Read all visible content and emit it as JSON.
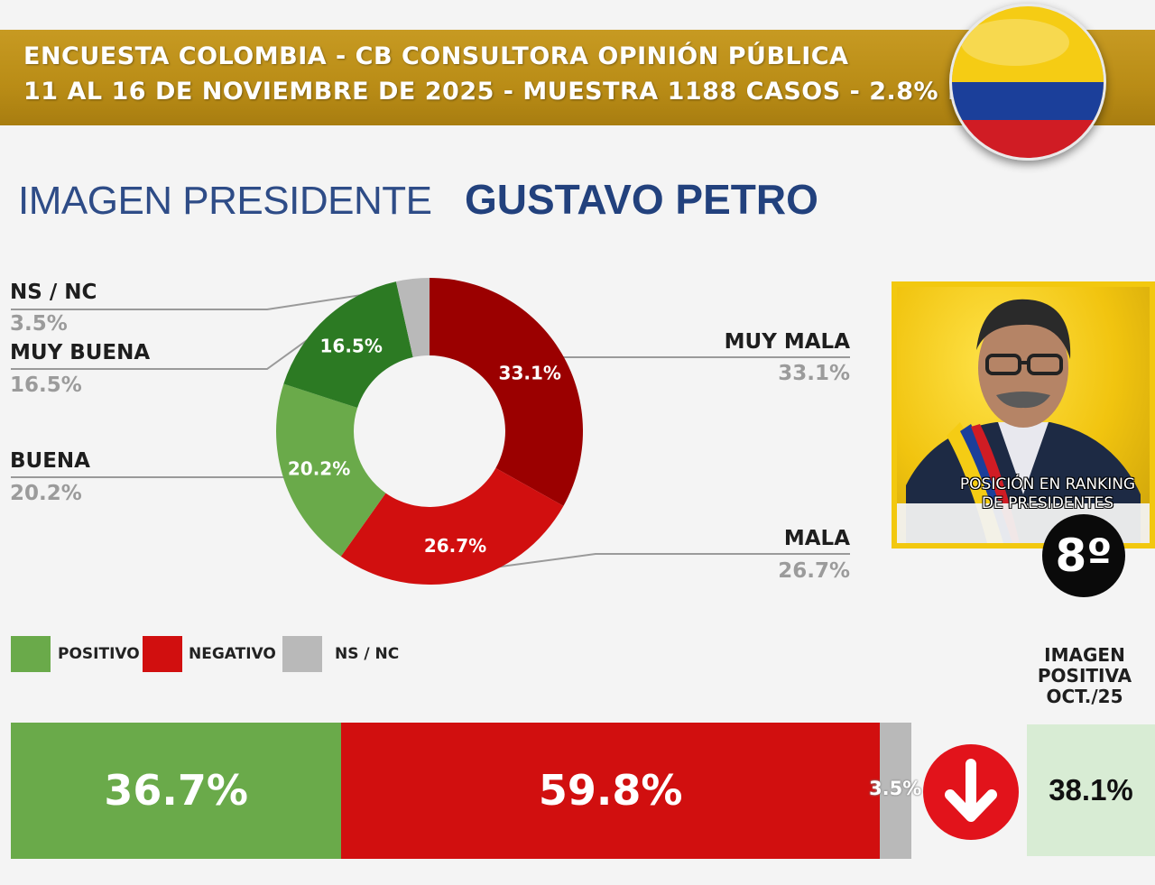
{
  "header": {
    "line1": "ENCUESTA COLOMBIA - CB CONSULTORA OPINIÓN PÚBLICA",
    "line2": "11 AL 16 DE NOVIEMBRE DE 2025 - MUESTRA 1188 CASOS - 2.8% M.E."
  },
  "title": {
    "prefix": "IMAGEN PRESIDENTE",
    "name": "GUSTAVO PETRO"
  },
  "labels": {
    "nsnc": {
      "name": "NS / NC",
      "value": "3.5%"
    },
    "muy_buena": {
      "name": "MUY BUENA",
      "value": "16.5%"
    },
    "buena": {
      "name": "BUENA",
      "value": "20.2%"
    },
    "muy_mala": {
      "name": "MUY MALA",
      "value": "33.1%"
    },
    "mala": {
      "name": "MALA",
      "value": "26.7%"
    }
  },
  "chart_data": {
    "type": "pie",
    "variant": "donut",
    "title": "IMAGEN PRESIDENTE GUSTAVO PETRO",
    "slices": [
      {
        "name": "MUY MALA",
        "value": 33.1,
        "label": "33.1%",
        "color": "#9b0000"
      },
      {
        "name": "MALA",
        "value": 26.7,
        "label": "26.7%",
        "color": "#d10f0f"
      },
      {
        "name": "BUENA",
        "value": 20.2,
        "label": "20.2%",
        "color": "#6aaa4a"
      },
      {
        "name": "MUY BUENA",
        "value": 16.5,
        "label": "16.5%",
        "color": "#2c7a23"
      },
      {
        "name": "NS / NC",
        "value": 3.5,
        "label": "",
        "color": "#b9b9b9"
      }
    ],
    "stacked_bar": {
      "segments": [
        {
          "name": "POSITIVO",
          "value": 36.7,
          "label": "36.7%",
          "color": "#6aaa4a"
        },
        {
          "name": "NEGATIVO",
          "value": 59.8,
          "label": "59.8%",
          "color": "#d10f0f"
        },
        {
          "name": "NS / NC",
          "value": 3.5,
          "label": "3.5%",
          "color": "#b9b9b9"
        }
      ]
    }
  },
  "legend": [
    {
      "label": "POSITIVO",
      "color": "#6aaa4a"
    },
    {
      "label": "NEGATIVO",
      "color": "#d10f0f"
    },
    {
      "label": "NS / NC",
      "color": "#b9b9b9"
    }
  ],
  "ranking": {
    "label": "POSICIÓN EN RANKING DE PRESIDENTES",
    "position": "8º"
  },
  "previous": {
    "label": "IMAGEN POSITIVA OCT./25",
    "value": "38.1%"
  },
  "icons": {
    "trend": "arrow-down-icon",
    "flag": "colombia-flag-icon"
  }
}
